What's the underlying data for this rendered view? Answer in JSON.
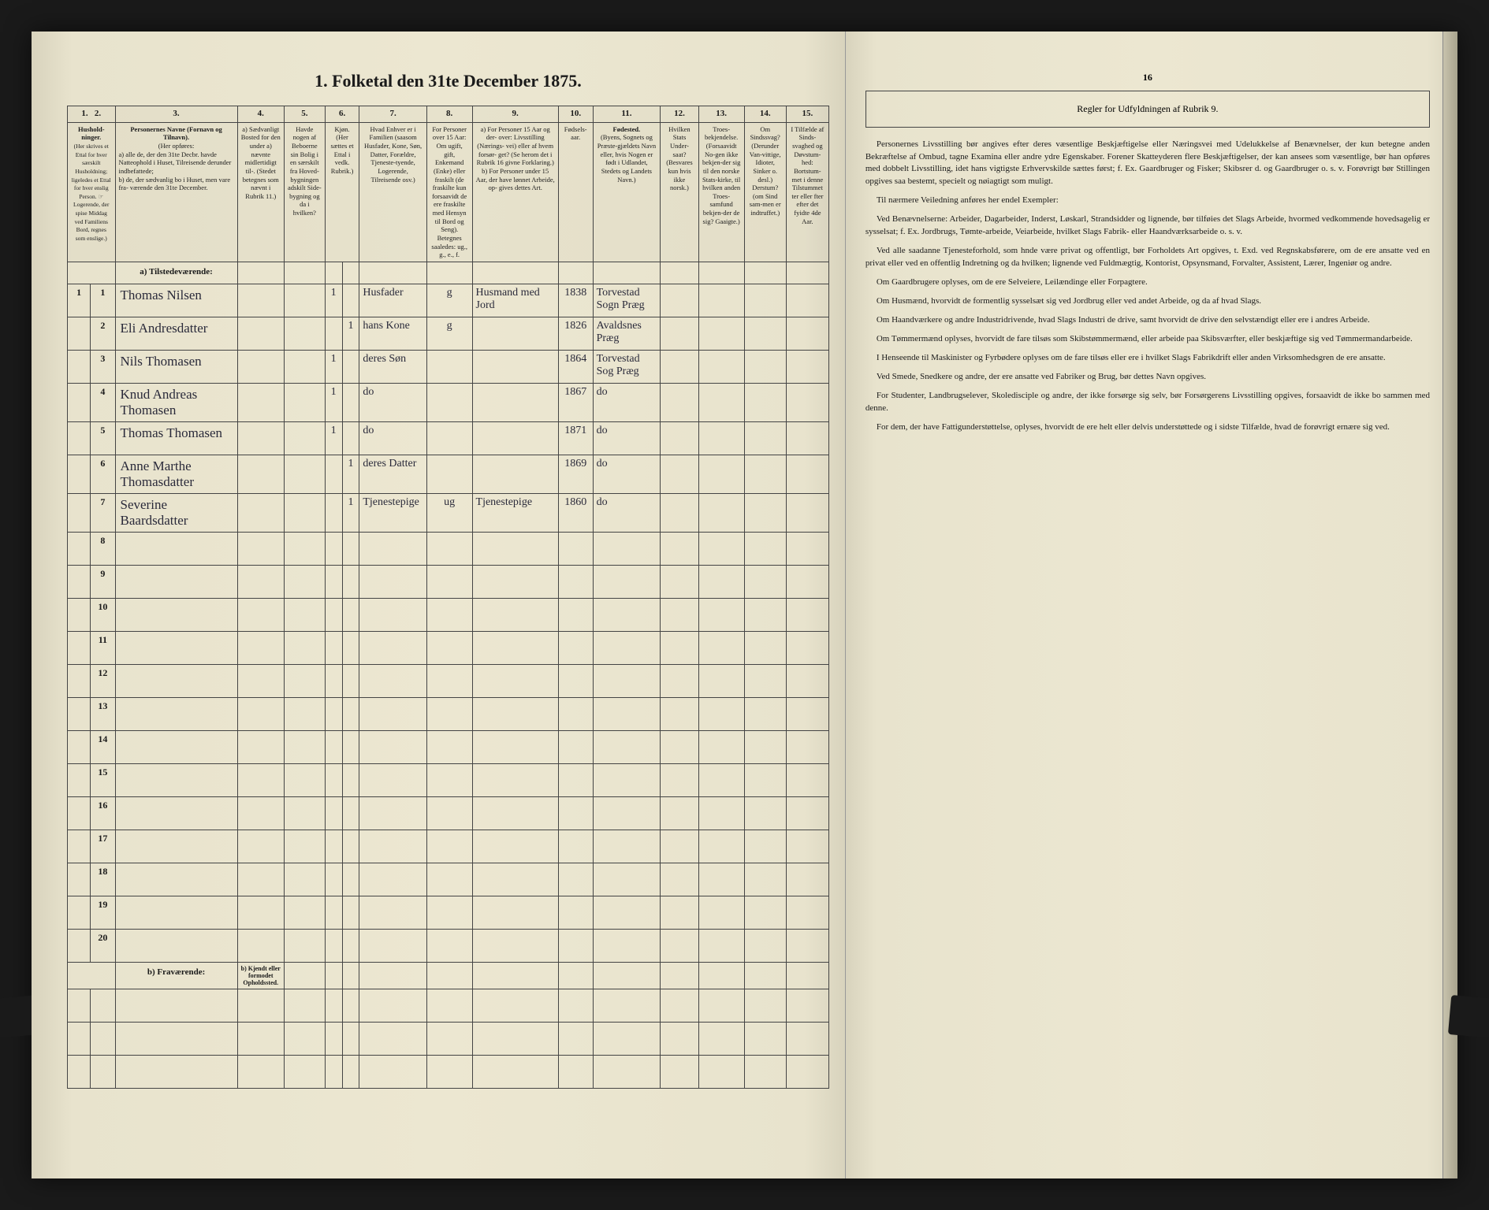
{
  "title": "1. Folketal den 31te December 1875.",
  "columns": {
    "nums": [
      "1.",
      "2.",
      "3.",
      "4.",
      "5.",
      "6.",
      "7.",
      "8.",
      "9.",
      "10.",
      "11.",
      "12.",
      "13.",
      "14.",
      "15.",
      "16"
    ],
    "h1": "Hushold-\nninger.",
    "h1b": "(Her skrives et Ettal for hver særskilt Husholdning; ligeledes et Ettal for hver enslig Person. ☞ Logerende, der spise Middag ved Familiens Bord, regnes som enslige.)",
    "h3": "Personernes Navne (Fornavn og Tilnavn).",
    "h3a": "(Her opføres:",
    "h3b": "a) alle de, der den 31te Decbr. havde Natteophold i Huset, Tilreisende derunder indbefattede;",
    "h3c": "b) de, der sædvanlig bo i Huset, men vare fra-\nværende den 31te December.",
    "h4": "a) Sædvanligt Bosted for den under a) nævnte midlertidigt til-. (Stedet betegnes som nævnt i Rubrik 11.)",
    "h5": "Havde nogen af Beboerne sin Bolig i en særskilt fra Hoved-bygningen adskilt Side-bygning og da i hvilken?",
    "h6": "Kjøn. (Her sættes et Ettal i vedk. Rubrik.)",
    "h6a": "Mandkjøn.",
    "h6b": "Kvindekjøn.",
    "h7": "Hvad Enhver er i Familien (saasom Husfader, Kone, Søn, Datter, Forældre, Tjeneste-tyende, Logerende, Tilreisende osv.)",
    "h8": "For Personer over 15 Aar: Om ugift, gift, Enkemand (Enke) eller fraskilt (de fraskilte kun forsaavidt de ere fraskilte med Hensyn til Bord og Seng). Betegnes saaledes: ug., g., e., f.",
    "h9": "a) For Personer 15 Aar og der-\nover: Livsstilling (Nærings-\nvei) eller af hvem forsør-\nget? (Se herom det i Rubrik 16 givne Forklaring.)",
    "h9b": "b) For Personer under 15 Aar, der have lønnet Arbeide, op-\ngives dettes Art.",
    "h10": "Fødsels-\naar.",
    "h11": "Fødested.",
    "h11b": "(Byens, Sognets og Præste-gjældets Navn eller, hvis Nogen er født i Udlandet, Stedets og Landets Navn.)",
    "h12": "Hvilken Stats Under-\nsaat? (Besvares kun hvis ikke norsk.)",
    "h13": "Troes-\nbekjendelse. (Forsaavidt No-gen ikke bekjen-der sig til den norske Stats-kirke, til hvilken anden Troes-samfund bekjen-der de sig? Gaaigte.)",
    "h14": "Om Sindssvag? (Derunder Van-vittige, Idioter, Sinker o. desl.) Derstum? (om Sind sam-men er indtruffet.)",
    "h15": "I Tilfælde af Sinds-svaghed og Døvstum-hed: Bortstum-met i denne Tilstummet ter eller fter efter det fyidte 4de Aar.",
    "h16": "Regler for Udfyldningen af Rubrik 9."
  },
  "section_a": "a) Tilstedeværende:",
  "section_b": "b) Fraværende:",
  "section_b_col4": "b) Kjendt eller formodet Opholdssted.",
  "rows": [
    {
      "n": "1",
      "hh": "1",
      "name": "Thomas Nilsen",
      "m": "1",
      "f": "",
      "rel": "Husfader",
      "civ": "g",
      "occ": "Husmand med Jord",
      "yr": "1838",
      "born": "Torvestad Sogn Præg"
    },
    {
      "n": "2",
      "hh": "",
      "name": "Eli Andresdatter",
      "m": "",
      "f": "1",
      "rel": "hans Kone",
      "civ": "g",
      "occ": "",
      "yr": "1826",
      "born": "Avaldsnes Præg"
    },
    {
      "n": "3",
      "hh": "",
      "name": "Nils Thomasen",
      "m": "1",
      "f": "",
      "rel": "deres Søn",
      "civ": "",
      "occ": "",
      "yr": "1864",
      "born": "Torvestad Sog Præg"
    },
    {
      "n": "4",
      "hh": "",
      "name": "Knud Andreas Thomasen",
      "m": "1",
      "f": "",
      "rel": "do",
      "civ": "",
      "occ": "",
      "yr": "1867",
      "born": "do"
    },
    {
      "n": "5",
      "hh": "",
      "name": "Thomas Thomasen",
      "m": "1",
      "f": "",
      "rel": "do",
      "civ": "",
      "occ": "",
      "yr": "1871",
      "born": "do"
    },
    {
      "n": "6",
      "hh": "",
      "name": "Anne Marthe Thomasdatter",
      "m": "",
      "f": "1",
      "rel": "deres Datter",
      "civ": "",
      "occ": "",
      "yr": "1869",
      "born": "do"
    },
    {
      "n": "7",
      "hh": "",
      "name": "Severine Baardsdatter",
      "m": "",
      "f": "1",
      "rel": "Tjenestepige",
      "civ": "ug",
      "occ": "Tjenestepige",
      "yr": "1860",
      "born": "do"
    },
    {
      "n": "8"
    },
    {
      "n": "9"
    },
    {
      "n": "10"
    },
    {
      "n": "11"
    },
    {
      "n": "12"
    },
    {
      "n": "13"
    },
    {
      "n": "14"
    },
    {
      "n": "15"
    },
    {
      "n": "16"
    },
    {
      "n": "17"
    },
    {
      "n": "18"
    },
    {
      "n": "19"
    },
    {
      "n": "20"
    }
  ],
  "rules": [
    "Personernes Livsstilling bør angives efter deres væsentlige Beskjæftigelse eller Næringsvei med Udelukkelse af Benævnelser, der kun betegne anden Bekræftelse af Ombud, tagne Examina eller andre ydre Egenskaber. Forener Skatteyderen flere Beskjæftigelser, der kan ansees som væsentlige, bør han opføres med dobbelt Livsstilling, idet hans vigtigste Erhvervskilde sættes først; f. Ex. Gaardbruger og Fisker; Skibsrer d. og Gaardbruger o. s. v. Forøvrigt bør Stillingen opgives saa bestemt, specielt og nøiagtigt som muligt.",
    "Til nærmere Veiledning anføres her endel Exempler:",
    "Ved Benævnelserne: Arbeider, Dagarbeider, Inderst, Løskarl, Strandsidder og lignende, bør tilføies det Slags Arbeide, hvormed vedkommende hovedsagelig er sysselsat; f. Ex. Jordbrugs, Tømte-arbeide, Veiarbeide, hvilket Slags Fabrik- eller Haandværksarbeide o. s. v.",
    "Ved alle saadanne Tjenesteforhold, som hnde være privat og offentligt, bør Forholdets Art opgives, t. Exd. ved Regnskabsførere, om de ere ansatte ved en privat eller ved en offentlig Indretning og da hvilken; lignende ved Fuldmægtig, Kontorist, Opsynsmand, Forvalter, Assistent, Lærer, Ingeniør og andre.",
    "Om Gaardbrugere oplyses, om de ere Selveiere, Leilændinge eller Forpagtere.",
    "Om Husmænd, hvorvidt de formentlig sysselsæt sig ved Jordbrug eller ved andet Arbeide, og da af hvad Slags.",
    "Om Haandværkere og andre Industridrivende, hvad Slags Industri de drive, samt hvorvidt de drive den selvstændigt eller ere i andres Arbeide.",
    "Om Tømmermænd oplyses, hvorvidt de fare tilsøs som Skibstømmermænd, eller arbeide paa Skibsværfter, eller beskjæftige sig ved Tømmermandarbeide.",
    "I Henseende til Maskinister og Fyrbødere oplyses om de fare tilsøs eller ere i hvilket Slags Fabrikdrift eller anden Virksomhedsgren de ere ansatte.",
    "Ved Smede, Snedkere og andre, der ere ansatte ved Fabriker og Brug, bør dettes Navn opgives.",
    "For Studenter, Landbrugselever, Skoledisciple og andre, der ikke forsørge sig selv, bør Forsørgerens Livsstilling opgives, forsaavidt de ikke bo sammen med denne.",
    "For dem, der have Fattigunderstøttelse, oplyses, hvorvidt de ere helt eller delvis understøttede og i sidste Tilfælde, hvad de forøvrigt ernære sig ved."
  ]
}
